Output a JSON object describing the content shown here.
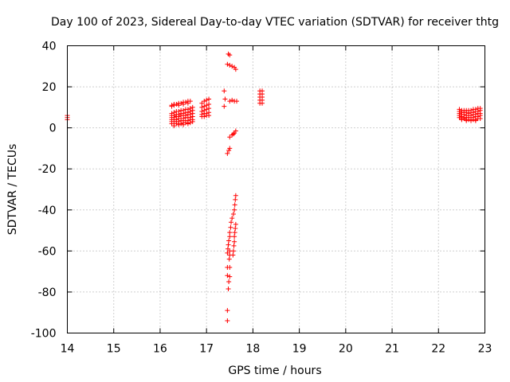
{
  "chart_data": {
    "type": "scatter",
    "title": "Day 100 of 2023, Sidereal Day-to-day VTEC variation (SDTVAR) for receiver thtg",
    "xlabel": "GPS time / hours",
    "ylabel": "SDTVAR / TECUs",
    "xlim": [
      14,
      23
    ],
    "ylim": [
      -100,
      40
    ],
    "xticks": [
      "14",
      "15",
      "16",
      "17",
      "18",
      "19",
      "20",
      "21",
      "22",
      "23"
    ],
    "yticks": [
      "-100",
      "-80",
      "-60",
      "-40",
      "-20",
      "0",
      "20",
      "40"
    ],
    "grid": true,
    "legend": "none",
    "marker": "+",
    "colors": {
      "points": "#ff0000",
      "grid": "#a0a0a0",
      "axes": "#000000"
    },
    "series": [
      {
        "points": [
          [
            14.0,
            6.0
          ],
          [
            14.0,
            5.0
          ],
          [
            14.0,
            4.0
          ],
          [
            16.25,
            11.0
          ],
          [
            16.3,
            11.5
          ],
          [
            16.35,
            11.5
          ],
          [
            16.4,
            12.0
          ],
          [
            16.45,
            12.0
          ],
          [
            16.5,
            12.5
          ],
          [
            16.55,
            12.5
          ],
          [
            16.6,
            13.0
          ],
          [
            16.65,
            13.0
          ],
          [
            16.25,
            10.5
          ],
          [
            16.3,
            11.0
          ],
          [
            16.4,
            11.0
          ],
          [
            16.5,
            11.5
          ],
          [
            16.6,
            12.0
          ],
          [
            16.25,
            7.0
          ],
          [
            16.3,
            7.5
          ],
          [
            16.35,
            8.0
          ],
          [
            16.4,
            8.0
          ],
          [
            16.45,
            8.5
          ],
          [
            16.5,
            8.5
          ],
          [
            16.55,
            9.0
          ],
          [
            16.6,
            9.0
          ],
          [
            16.65,
            9.5
          ],
          [
            16.7,
            10.0
          ],
          [
            16.25,
            6.0
          ],
          [
            16.3,
            6.0
          ],
          [
            16.35,
            6.5
          ],
          [
            16.4,
            6.5
          ],
          [
            16.45,
            7.0
          ],
          [
            16.5,
            7.0
          ],
          [
            16.55,
            7.5
          ],
          [
            16.6,
            7.5
          ],
          [
            16.65,
            8.0
          ],
          [
            16.7,
            8.5
          ],
          [
            16.25,
            5.0
          ],
          [
            16.3,
            5.0
          ],
          [
            16.35,
            5.5
          ],
          [
            16.4,
            5.5
          ],
          [
            16.45,
            6.0
          ],
          [
            16.5,
            6.0
          ],
          [
            16.55,
            6.0
          ],
          [
            16.6,
            6.5
          ],
          [
            16.65,
            6.5
          ],
          [
            16.7,
            7.0
          ],
          [
            16.25,
            4.0
          ],
          [
            16.3,
            4.0
          ],
          [
            16.35,
            4.0
          ],
          [
            16.4,
            4.5
          ],
          [
            16.45,
            4.5
          ],
          [
            16.5,
            4.5
          ],
          [
            16.55,
            5.0
          ],
          [
            16.6,
            5.0
          ],
          [
            16.65,
            5.0
          ],
          [
            16.7,
            5.5
          ],
          [
            16.25,
            3.0
          ],
          [
            16.3,
            3.0
          ],
          [
            16.35,
            3.0
          ],
          [
            16.4,
            3.0
          ],
          [
            16.45,
            3.5
          ],
          [
            16.5,
            3.5
          ],
          [
            16.55,
            3.5
          ],
          [
            16.6,
            3.5
          ],
          [
            16.65,
            4.0
          ],
          [
            16.7,
            4.0
          ],
          [
            16.25,
            2.0
          ],
          [
            16.3,
            2.0
          ],
          [
            16.35,
            2.0
          ],
          [
            16.4,
            2.0
          ],
          [
            16.45,
            2.0
          ],
          [
            16.5,
            2.5
          ],
          [
            16.55,
            2.5
          ],
          [
            16.6,
            2.5
          ],
          [
            16.65,
            2.5
          ],
          [
            16.7,
            3.0
          ],
          [
            16.3,
            1.0
          ],
          [
            16.4,
            1.5
          ],
          [
            16.5,
            1.5
          ],
          [
            16.6,
            2.0
          ],
          [
            16.9,
            12.0
          ],
          [
            16.95,
            13.0
          ],
          [
            17.0,
            13.5
          ],
          [
            17.05,
            14.0
          ],
          [
            16.9,
            10.0
          ],
          [
            16.95,
            10.5
          ],
          [
            17.0,
            11.0
          ],
          [
            17.05,
            11.5
          ],
          [
            16.9,
            8.0
          ],
          [
            16.95,
            8.5
          ],
          [
            17.0,
            9.0
          ],
          [
            17.05,
            9.5
          ],
          [
            16.9,
            6.5
          ],
          [
            16.95,
            7.0
          ],
          [
            17.0,
            7.0
          ],
          [
            17.05,
            7.5
          ],
          [
            16.9,
            5.5
          ],
          [
            16.95,
            5.5
          ],
          [
            17.0,
            6.0
          ],
          [
            17.05,
            6.0
          ],
          [
            17.38,
            18.0
          ],
          [
            17.4,
            14.0
          ],
          [
            17.38,
            10.5
          ],
          [
            17.5,
            13.0
          ],
          [
            17.55,
            13.5
          ],
          [
            17.6,
            13.0
          ],
          [
            17.65,
            13.0
          ],
          [
            17.47,
            36.0
          ],
          [
            17.5,
            35.5
          ],
          [
            17.45,
            31.0
          ],
          [
            17.5,
            30.5
          ],
          [
            17.55,
            30.0
          ],
          [
            17.6,
            29.5
          ],
          [
            17.63,
            28.5
          ],
          [
            17.5,
            -4.5
          ],
          [
            17.55,
            -3.5
          ],
          [
            17.6,
            -2.5
          ],
          [
            17.63,
            -1.5
          ],
          [
            17.58,
            -3.0
          ],
          [
            17.5,
            -10.0
          ],
          [
            17.48,
            -11.0
          ],
          [
            17.45,
            -12.5
          ],
          [
            17.63,
            -33.0
          ],
          [
            17.62,
            -35.0
          ],
          [
            17.61,
            -37.5
          ],
          [
            17.6,
            -40.0
          ],
          [
            17.58,
            -42.0
          ],
          [
            17.55,
            -44.0
          ],
          [
            17.53,
            -46.0
          ],
          [
            17.52,
            -48.5
          ],
          [
            17.63,
            -47.0
          ],
          [
            17.62,
            -49.0
          ],
          [
            17.61,
            -51.0
          ],
          [
            17.6,
            -53.0
          ],
          [
            17.6,
            -55.5
          ],
          [
            17.59,
            -57.5
          ],
          [
            17.58,
            -60.0
          ],
          [
            17.57,
            -62.0
          ],
          [
            17.5,
            -51.0
          ],
          [
            17.5,
            -53.0
          ],
          [
            17.48,
            -55.0
          ],
          [
            17.47,
            -57.0
          ],
          [
            17.46,
            -59.0
          ],
          [
            17.45,
            -61.0
          ],
          [
            17.5,
            -60.0
          ],
          [
            17.5,
            -62.0
          ],
          [
            17.49,
            -64.0
          ],
          [
            17.45,
            -68.0
          ],
          [
            17.5,
            -68.0
          ],
          [
            17.45,
            -72.0
          ],
          [
            17.5,
            -72.5
          ],
          [
            17.48,
            -75.0
          ],
          [
            17.47,
            -78.5
          ],
          [
            17.45,
            -89.0
          ],
          [
            17.45,
            -94.0
          ],
          [
            18.15,
            18.0
          ],
          [
            18.2,
            18.0
          ],
          [
            18.15,
            16.5
          ],
          [
            18.2,
            16.5
          ],
          [
            18.15,
            15.0
          ],
          [
            18.2,
            15.0
          ],
          [
            18.15,
            13.5
          ],
          [
            18.2,
            13.5
          ],
          [
            18.15,
            12.0
          ],
          [
            18.2,
            12.0
          ],
          [
            22.45,
            9.0
          ],
          [
            22.5,
            8.5
          ],
          [
            22.55,
            8.5
          ],
          [
            22.6,
            8.5
          ],
          [
            22.65,
            8.5
          ],
          [
            22.7,
            8.5
          ],
          [
            22.75,
            9.0
          ],
          [
            22.8,
            9.0
          ],
          [
            22.85,
            9.5
          ],
          [
            22.9,
            9.5
          ],
          [
            22.45,
            8.0
          ],
          [
            22.5,
            7.5
          ],
          [
            22.55,
            7.5
          ],
          [
            22.6,
            7.5
          ],
          [
            22.65,
            7.0
          ],
          [
            22.7,
            7.5
          ],
          [
            22.75,
            7.5
          ],
          [
            22.8,
            8.0
          ],
          [
            22.85,
            8.0
          ],
          [
            22.9,
            8.5
          ],
          [
            22.45,
            7.0
          ],
          [
            22.5,
            6.5
          ],
          [
            22.55,
            6.5
          ],
          [
            22.6,
            6.0
          ],
          [
            22.65,
            6.0
          ],
          [
            22.7,
            6.0
          ],
          [
            22.75,
            6.5
          ],
          [
            22.8,
            6.5
          ],
          [
            22.85,
            7.0
          ],
          [
            22.9,
            7.0
          ],
          [
            22.45,
            6.0
          ],
          [
            22.5,
            5.5
          ],
          [
            22.55,
            5.0
          ],
          [
            22.6,
            5.0
          ],
          [
            22.65,
            5.0
          ],
          [
            22.7,
            5.0
          ],
          [
            22.75,
            5.0
          ],
          [
            22.8,
            5.5
          ],
          [
            22.85,
            5.5
          ],
          [
            22.9,
            6.0
          ],
          [
            22.45,
            5.0
          ],
          [
            22.5,
            4.5
          ],
          [
            22.55,
            4.5
          ],
          [
            22.6,
            4.0
          ],
          [
            22.65,
            4.0
          ],
          [
            22.7,
            4.0
          ],
          [
            22.75,
            4.0
          ],
          [
            22.8,
            4.0
          ],
          [
            22.85,
            4.5
          ],
          [
            22.9,
            4.5
          ],
          [
            22.5,
            4.0
          ],
          [
            22.6,
            3.5
          ],
          [
            22.7,
            3.5
          ],
          [
            22.8,
            3.5
          ]
        ]
      }
    ]
  }
}
